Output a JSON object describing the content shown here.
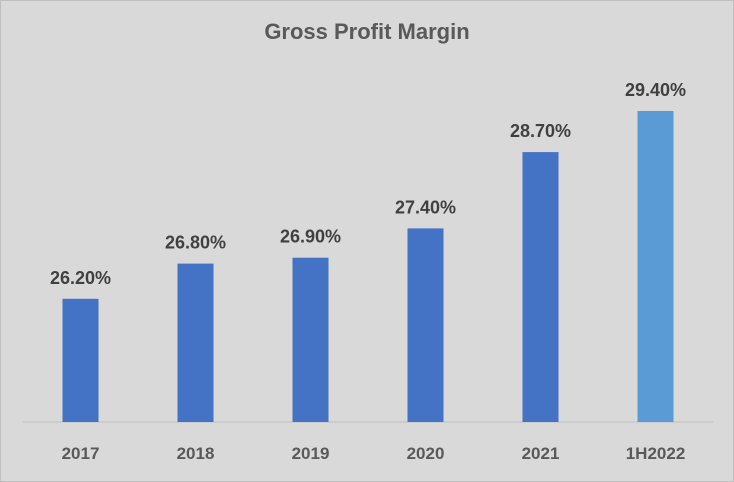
{
  "chart_data": {
    "type": "bar",
    "title": "Gross Profit Margin",
    "xlabel": "",
    "ylabel": "",
    "categories": [
      "2017",
      "2018",
      "2019",
      "2020",
      "2021",
      "1H2022"
    ],
    "values": [
      26.2,
      26.8,
      26.9,
      27.4,
      28.7,
      29.4
    ],
    "data_labels": [
      "26.20%",
      "26.80%",
      "26.90%",
      "27.40%",
      "28.70%",
      "29.40%"
    ],
    "unit": "%",
    "ylim": [
      24.1,
      29.4
    ],
    "grid": false,
    "legend": "none",
    "bar_colors": [
      "#4472c4",
      "#4472c4",
      "#4472c4",
      "#4472c4",
      "#4472c4",
      "#5b9bd5"
    ],
    "axis_color": "#bfbfbf",
    "background": "#d9d9d9"
  }
}
